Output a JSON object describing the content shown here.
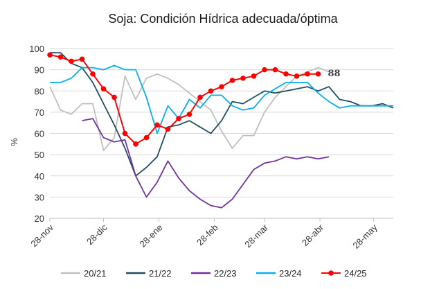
{
  "chart_data": {
    "type": "line",
    "title": "Soja: Condición Hídrica adecuada/óptima",
    "ylabel": "%",
    "xlabel": "",
    "ylim": [
      20,
      100
    ],
    "yticks": [
      20,
      30,
      40,
      50,
      60,
      70,
      80,
      90,
      100
    ],
    "xlim": [
      "2024-11-28",
      "2025-06-08"
    ],
    "xticks": [
      {
        "date": "2024-11-28",
        "label": "28-nov"
      },
      {
        "date": "2024-12-28",
        "label": "28-dic"
      },
      {
        "date": "2025-01-28",
        "label": "28-ene"
      },
      {
        "date": "2025-02-28",
        "label": "28-feb"
      },
      {
        "date": "2025-03-28",
        "label": "28-mar"
      },
      {
        "date": "2025-04-28",
        "label": "28-abr"
      },
      {
        "date": "2025-05-28",
        "label": "28-may"
      }
    ],
    "grid": "horizontal",
    "legend_position": "bottom",
    "end_label": {
      "series": "24/25",
      "text": "88"
    },
    "series": [
      {
        "name": "20/21",
        "color": "#bfbfbf",
        "markers": false,
        "x": [
          "2024-11-28",
          "2024-12-04",
          "2024-12-10",
          "2024-12-16",
          "2024-12-22",
          "2024-12-28",
          "2025-01-03",
          "2025-01-09",
          "2025-01-15",
          "2025-01-21",
          "2025-01-27",
          "2025-02-02",
          "2025-02-08",
          "2025-02-14",
          "2025-02-20",
          "2025-02-26",
          "2025-03-04",
          "2025-03-10",
          "2025-03-16",
          "2025-03-22",
          "2025-03-28",
          "2025-04-03",
          "2025-04-09",
          "2025-04-15",
          "2025-04-21",
          "2025-04-27",
          "2025-05-03"
        ],
        "y": [
          82,
          71,
          69,
          74,
          74,
          52,
          58,
          87,
          76,
          86,
          88,
          86,
          83,
          79,
          75,
          71,
          61,
          53,
          59,
          59,
          70,
          77,
          82,
          87,
          89,
          91,
          89
        ]
      },
      {
        "name": "21/22",
        "color": "#1f4e5f",
        "markers": false,
        "x": [
          "2024-11-28",
          "2024-12-04",
          "2024-12-10",
          "2024-12-16",
          "2024-12-22",
          "2024-12-28",
          "2025-01-03",
          "2025-01-09",
          "2025-01-15",
          "2025-01-21",
          "2025-01-27",
          "2025-02-02",
          "2025-02-08",
          "2025-02-14",
          "2025-02-20",
          "2025-02-26",
          "2025-03-04",
          "2025-03-10",
          "2025-03-16",
          "2025-03-22",
          "2025-03-28",
          "2025-04-03",
          "2025-04-09",
          "2025-04-15",
          "2025-04-21",
          "2025-04-27",
          "2025-05-03",
          "2025-05-09",
          "2025-05-15",
          "2025-05-21",
          "2025-05-27",
          "2025-06-02",
          "2025-06-08"
        ],
        "y": [
          98,
          98,
          93,
          91,
          84,
          74,
          64,
          53,
          40,
          44,
          49,
          63,
          64,
          66,
          63,
          60,
          66,
          75,
          74,
          77,
          80,
          79,
          80,
          81,
          82,
          80,
          82,
          76,
          75,
          73,
          73,
          74,
          72
        ]
      },
      {
        "name": "22/23",
        "color": "#7030a0",
        "markers": false,
        "x": [
          "2024-12-16",
          "2024-12-22",
          "2024-12-28",
          "2025-01-03",
          "2025-01-09",
          "2025-01-15",
          "2025-01-21",
          "2025-01-27",
          "2025-02-02",
          "2025-02-08",
          "2025-02-14",
          "2025-02-20",
          "2025-02-26",
          "2025-03-04",
          "2025-03-10",
          "2025-03-16",
          "2025-03-22",
          "2025-03-28",
          "2025-04-03",
          "2025-04-09",
          "2025-04-15",
          "2025-04-21",
          "2025-04-27",
          "2025-05-03"
        ],
        "y": [
          66,
          67,
          58,
          56,
          57,
          40,
          30,
          37,
          47,
          39,
          33,
          29,
          26,
          25,
          29,
          36,
          43,
          46,
          47,
          49,
          48,
          49,
          48,
          49
        ]
      },
      {
        "name": "23/24",
        "color": "#00b0f0",
        "markers": false,
        "x": [
          "2024-11-28",
          "2024-12-04",
          "2024-12-10",
          "2024-12-16",
          "2024-12-22",
          "2024-12-28",
          "2025-01-03",
          "2025-01-09",
          "2025-01-15",
          "2025-01-21",
          "2025-01-27",
          "2025-02-02",
          "2025-02-08",
          "2025-02-14",
          "2025-02-20",
          "2025-02-26",
          "2025-03-04",
          "2025-03-10",
          "2025-03-16",
          "2025-03-22",
          "2025-03-28",
          "2025-04-03",
          "2025-04-09",
          "2025-04-15",
          "2025-04-21",
          "2025-04-27",
          "2025-05-03",
          "2025-05-09",
          "2025-05-15",
          "2025-05-21",
          "2025-05-27",
          "2025-06-02",
          "2025-06-08"
        ],
        "y": [
          84,
          84,
          86,
          91,
          91,
          90,
          92,
          90,
          90,
          77,
          60,
          73,
          67,
          76,
          72,
          78,
          78,
          73,
          71,
          72,
          78,
          81,
          84,
          84,
          84,
          79,
          75,
          72,
          73,
          73,
          73,
          73,
          73
        ]
      },
      {
        "name": "24/25",
        "color": "#ff0000",
        "markers": true,
        "x": [
          "2024-11-28",
          "2024-12-04",
          "2024-12-10",
          "2024-12-16",
          "2024-12-22",
          "2024-12-28",
          "2025-01-03",
          "2025-01-09",
          "2025-01-15",
          "2025-01-21",
          "2025-01-27",
          "2025-02-02",
          "2025-02-08",
          "2025-02-14",
          "2025-02-20",
          "2025-02-26",
          "2025-03-04",
          "2025-03-10",
          "2025-03-16",
          "2025-03-22",
          "2025-03-28",
          "2025-04-03",
          "2025-04-09",
          "2025-04-15",
          "2025-04-21",
          "2025-04-27"
        ],
        "y": [
          97,
          96,
          94,
          95,
          88,
          81,
          77,
          60,
          55,
          58,
          64,
          62,
          67,
          69,
          77,
          80,
          82,
          85,
          86,
          87,
          90,
          90,
          88,
          87,
          88,
          88
        ]
      }
    ]
  }
}
